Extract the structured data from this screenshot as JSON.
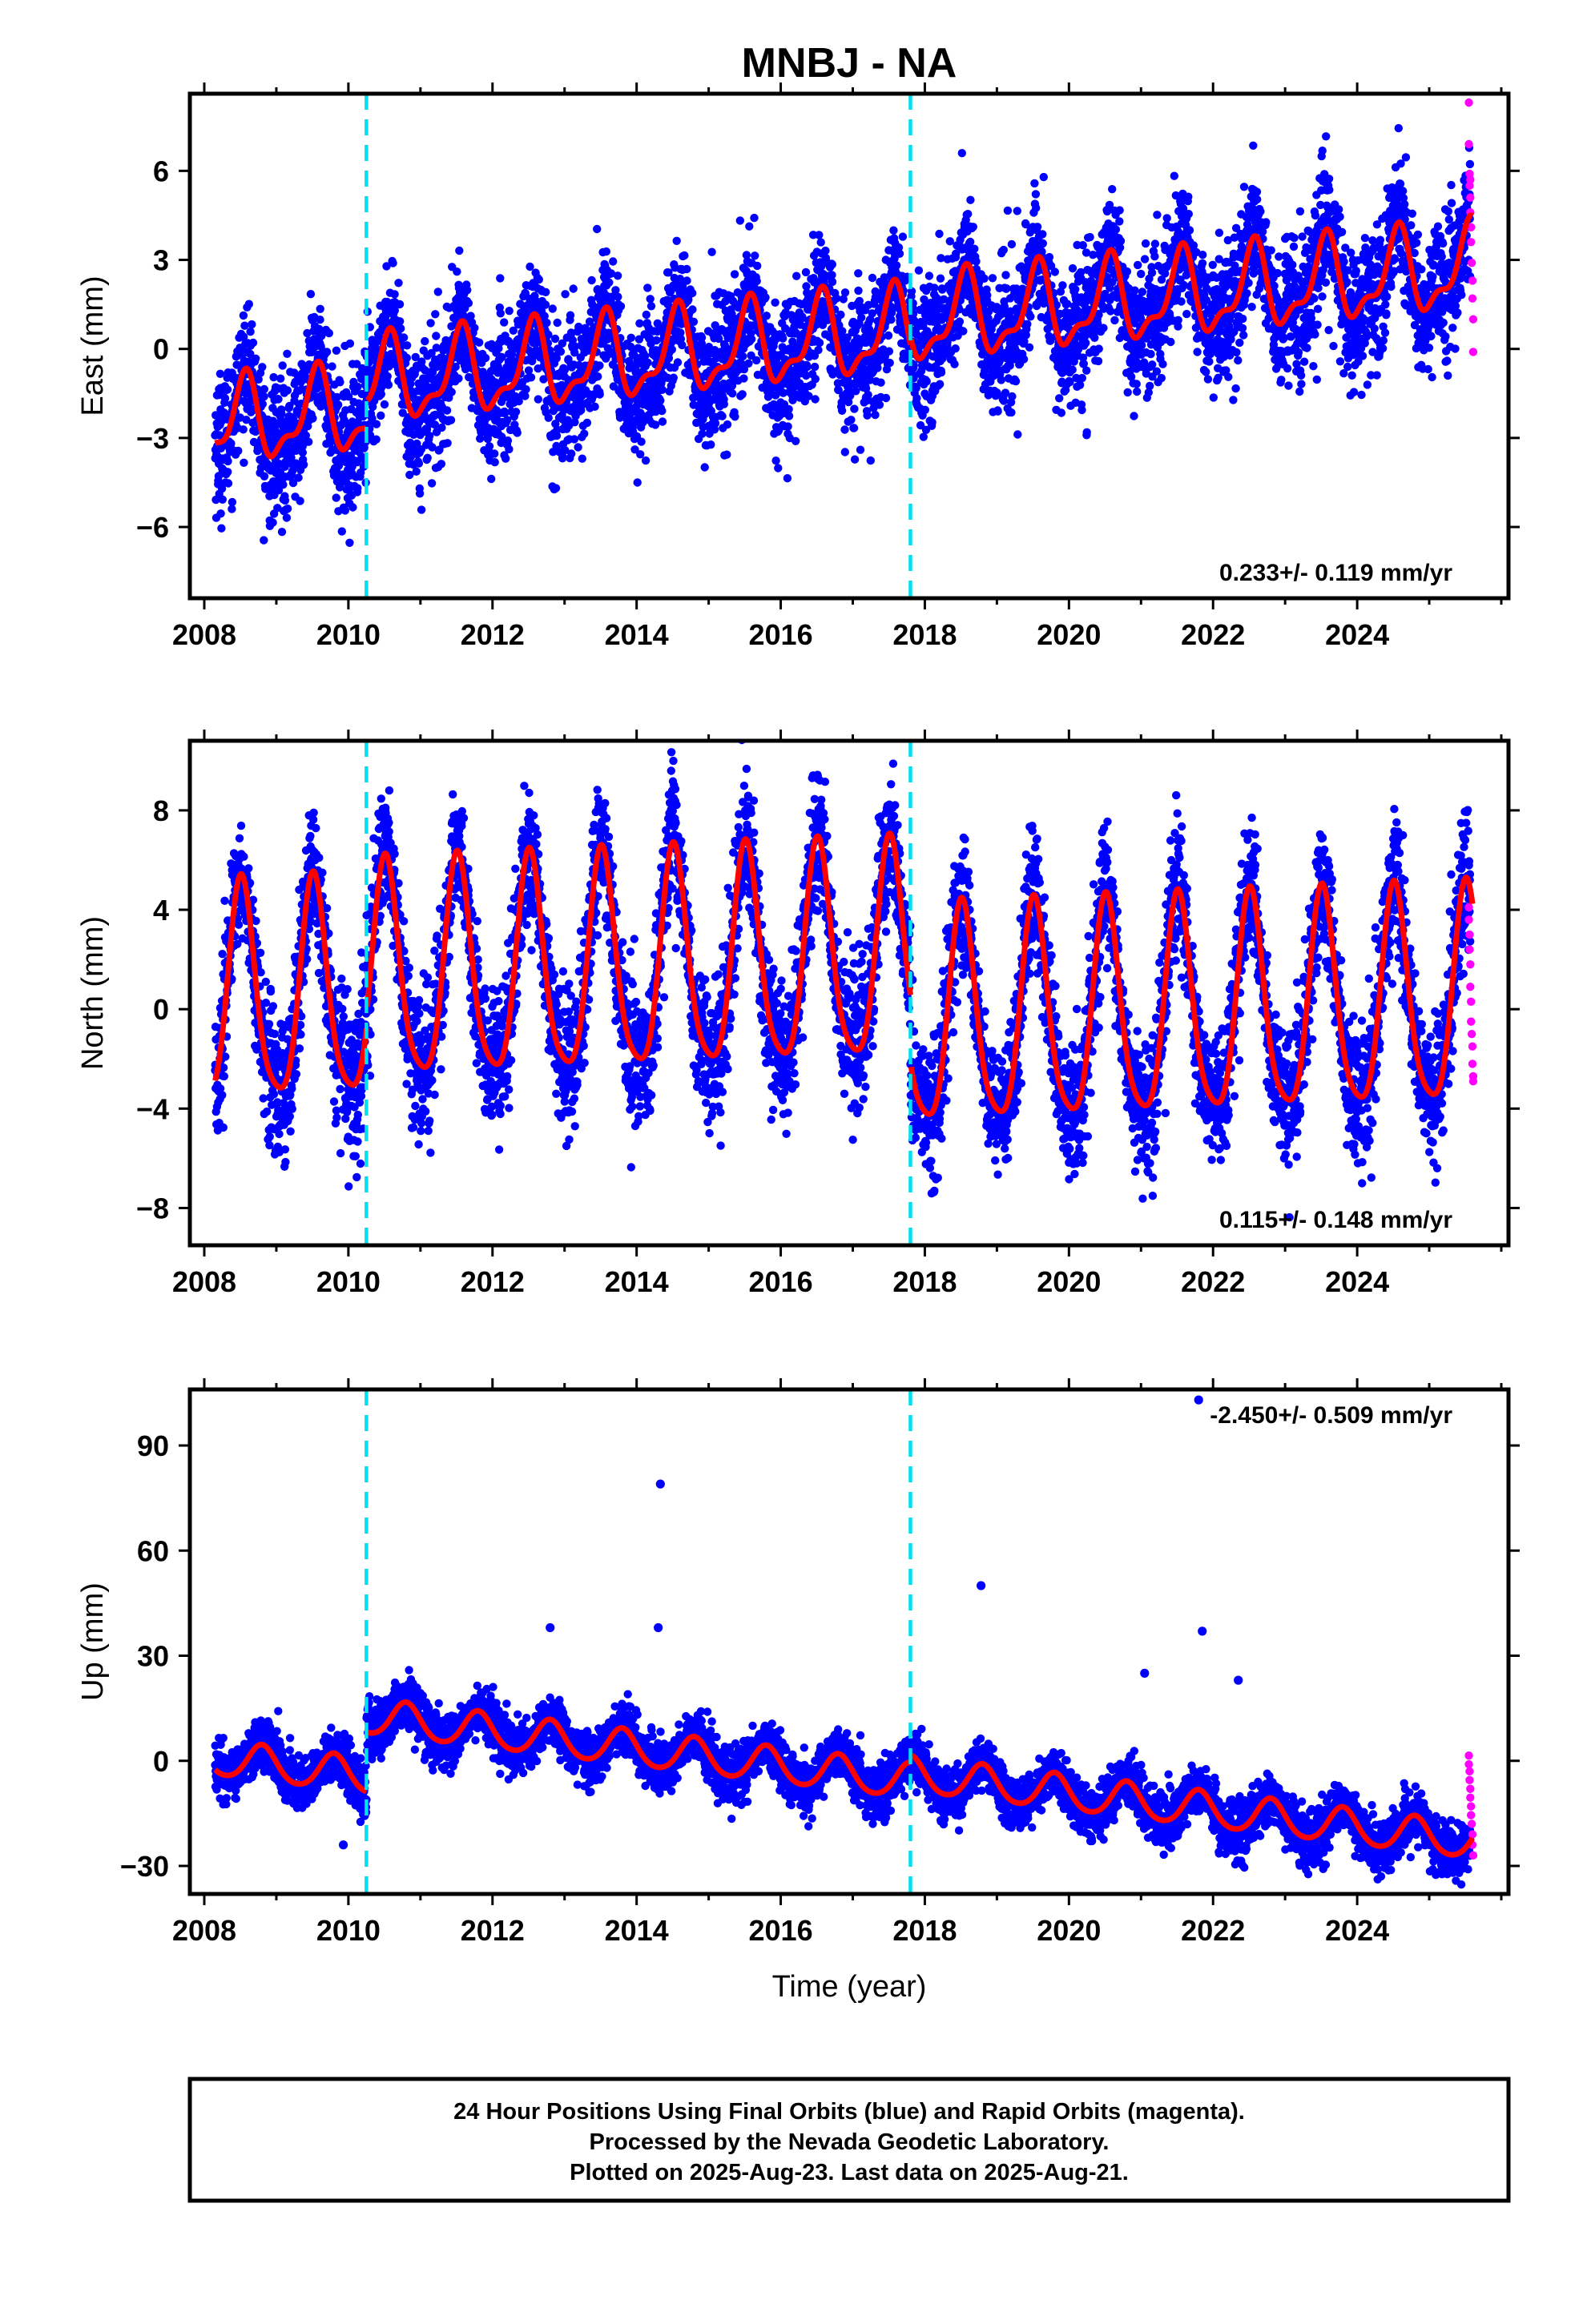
{
  "title": "MNBJ - NA",
  "colors": {
    "final": "#0000ff",
    "rapid": "#ff00ff",
    "model": "#ff0000",
    "event": "#00e0f0",
    "frame": "#000000"
  },
  "footer": {
    "line1": "24 Hour Positions Using Final Orbits (blue) and Rapid Orbits (magenta).",
    "line2": "Processed by the Nevada Geodetic Laboratory.",
    "line3": "Plotted on 2025-Aug-23. Last data on 2025-Aug-21."
  },
  "chart_data": [
    {
      "type": "scatter",
      "component": "east",
      "ylabel": "East (mm)",
      "xlabel": "",
      "xlim": [
        2007.8,
        2026.1
      ],
      "ylim": [
        -8.4,
        8.6
      ],
      "xticks": [
        2008,
        2010,
        2012,
        2014,
        2016,
        2018,
        2020,
        2022,
        2024
      ],
      "yticks": [
        -6,
        -3,
        0,
        3,
        6
      ],
      "yticklabels": [
        "−6",
        "−3",
        "0",
        "3",
        "6"
      ],
      "rate_text": "0.233+/- 0.119 mm/yr",
      "rate_position": "bottom-right",
      "event_lines": [
        2010.25,
        2017.8
      ],
      "model": {
        "start": 2008.15,
        "end": 2025.6,
        "offset_at_2008": -2.6,
        "trend_per_year": 0.233,
        "annual_amp": 1.3,
        "annual_peak_frac": 0.55,
        "semiannual_amp": 0.55,
        "semiannual_peak_frac": 0.1,
        "steps": [
          {
            "t": 2010.25,
            "dy": 0.9
          },
          {
            "t": 2017.8,
            "dy": 0.3
          }
        ]
      },
      "scatter_sd": 1.2,
      "rapid_points": [
        [
          2025.55,
          8.3
        ],
        [
          2025.55,
          6.9
        ],
        [
          2025.56,
          5.9
        ],
        [
          2025.56,
          5.5
        ],
        [
          2025.57,
          5.1
        ],
        [
          2025.57,
          4.6
        ],
        [
          2025.58,
          4.1
        ],
        [
          2025.58,
          3.6
        ],
        [
          2025.59,
          2.9
        ],
        [
          2025.6,
          2.3
        ],
        [
          2025.6,
          1.7
        ],
        [
          2025.61,
          1.0
        ],
        [
          2025.61,
          -0.1
        ],
        [
          2025.57,
          5.7
        ]
      ]
    },
    {
      "type": "scatter",
      "component": "north",
      "ylabel": "North (mm)",
      "xlabel": "",
      "xlim": [
        2007.8,
        2026.1
      ],
      "ylim": [
        -9.5,
        10.8
      ],
      "xticks": [
        2008,
        2010,
        2012,
        2014,
        2016,
        2018,
        2020,
        2022,
        2024
      ],
      "yticks": [
        -8,
        -4,
        0,
        4,
        8
      ],
      "yticklabels": [
        "−8",
        "−4",
        "0",
        "4",
        "8"
      ],
      "rate_text": "0.115+/- 0.148 mm/yr",
      "rate_position": "bottom-right",
      "event_lines": [
        2010.25,
        2017.8
      ],
      "model": {
        "start": 2008.15,
        "end": 2025.6,
        "offset_at_2008": 0.3,
        "trend_per_year": 0.115,
        "annual_amp": 4.3,
        "annual_peak_frac": 0.52,
        "semiannual_amp": 0.8,
        "semiannual_peak_frac": 0.0,
        "steps": [
          {
            "t": 2010.25,
            "dy": 0.6
          },
          {
            "t": 2017.8,
            "dy": -2.7
          }
        ]
      },
      "scatter_sd": 1.5,
      "rapid_points": [
        [
          2025.55,
          4.1
        ],
        [
          2025.55,
          3.6
        ],
        [
          2025.56,
          3.0
        ],
        [
          2025.56,
          2.4
        ],
        [
          2025.57,
          1.8
        ],
        [
          2025.57,
          0.9
        ],
        [
          2025.58,
          0.3
        ],
        [
          2025.58,
          -0.5
        ],
        [
          2025.59,
          -1.0
        ],
        [
          2025.6,
          -1.5
        ],
        [
          2025.6,
          -2.2
        ],
        [
          2025.61,
          -2.7
        ],
        [
          2025.61,
          -2.9
        ]
      ]
    },
    {
      "type": "scatter",
      "component": "up",
      "ylabel": "Up (mm)",
      "xlabel": "Time (year)",
      "xlim": [
        2007.8,
        2026.1
      ],
      "ylim": [
        -38,
        106
      ],
      "xticks": [
        2008,
        2010,
        2012,
        2014,
        2016,
        2018,
        2020,
        2022,
        2024
      ],
      "yticks": [
        -30,
        0,
        30,
        60,
        90
      ],
      "yticklabels": [
        "−30",
        "0",
        "30",
        "60",
        "90"
      ],
      "rate_text": "-2.450+/- 0.509 mm/yr",
      "rate_position": "top-right",
      "event_lines": [
        2010.25,
        2017.8
      ],
      "model": {
        "start": 2008.15,
        "end": 2025.6,
        "offset_at_2008": 1.0,
        "trend_per_year": -2.45,
        "annual_amp": 5.0,
        "annual_peak_frac": 0.8,
        "semiannual_amp": 0.6,
        "semiannual_peak_frac": 0.3,
        "steps": [
          {
            "t": 2010.25,
            "dy": 17.0
          },
          {
            "t": 2017.8,
            "dy": 2.0
          }
        ]
      },
      "scatter_sd": 4.0,
      "outliers": [
        [
          2014.33,
          79
        ],
        [
          2018.78,
          50
        ],
        [
          2021.85,
          37
        ],
        [
          2014.3,
          38
        ],
        [
          2012.8,
          38
        ],
        [
          2022.35,
          23
        ],
        [
          2021.05,
          25
        ],
        [
          2009.93,
          -24
        ],
        [
          2021.8,
          103
        ]
      ],
      "rapid_points": [
        [
          2025.55,
          1.5
        ],
        [
          2025.55,
          -1.0
        ],
        [
          2025.56,
          -3.0
        ],
        [
          2025.56,
          -5.5
        ],
        [
          2025.57,
          -8.0
        ],
        [
          2025.57,
          -10.5
        ],
        [
          2025.58,
          -13.0
        ],
        [
          2025.58,
          -15.5
        ],
        [
          2025.59,
          -18.0
        ],
        [
          2025.6,
          -21.0
        ],
        [
          2025.6,
          -24.0
        ],
        [
          2025.61,
          -27.0
        ]
      ]
    }
  ]
}
